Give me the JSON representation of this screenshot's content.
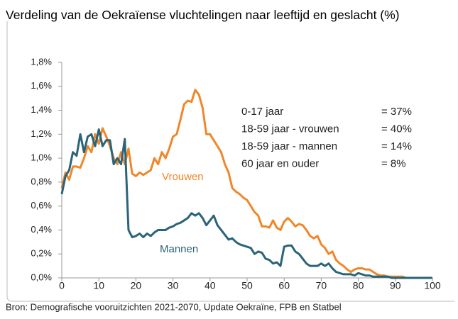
{
  "chart_data": {
    "type": "line",
    "title": "Verdeling van de Oekraïense vluchtelingen naar leeftijd en geslacht (%)",
    "source": "Bron: Demografische vooruitzichten 2021-2070, Update Oekraïne, FPB en Statbel",
    "annotations": [
      {
        "label": "0-17 jaar",
        "value": "= 37%"
      },
      {
        "label": "18-59 jaar - vrouwen",
        "value": "= 40%"
      },
      {
        "label": "18-59 jaar - mannen",
        "value": "= 14%"
      },
      {
        "label": "60 jaar en ouder",
        "value": "= 8%"
      }
    ],
    "x": [
      0,
      1,
      2,
      3,
      4,
      5,
      6,
      7,
      8,
      9,
      10,
      11,
      12,
      13,
      14,
      15,
      16,
      17,
      18,
      19,
      20,
      21,
      22,
      23,
      24,
      25,
      26,
      27,
      28,
      29,
      30,
      31,
      32,
      33,
      34,
      35,
      36,
      37,
      38,
      39,
      40,
      41,
      42,
      43,
      44,
      45,
      46,
      47,
      48,
      49,
      50,
      51,
      52,
      53,
      54,
      55,
      56,
      57,
      58,
      59,
      60,
      61,
      62,
      63,
      64,
      65,
      66,
      67,
      68,
      69,
      70,
      71,
      72,
      73,
      74,
      75,
      76,
      77,
      78,
      79,
      80,
      81,
      82,
      83,
      84,
      85,
      86,
      87,
      88,
      89,
      90,
      91,
      92,
      93,
      94,
      95,
      96,
      97,
      98,
      99,
      100
    ],
    "series": [
      {
        "name": "Vrouwen",
        "color": "#f0872a",
        "values": [
          0.75,
          0.88,
          0.82,
          0.93,
          0.93,
          0.92,
          1.0,
          1.1,
          1.05,
          1.2,
          1.12,
          1.25,
          1.18,
          1.1,
          1.0,
          0.95,
          1.05,
          0.95,
          1.08,
          0.87,
          0.85,
          0.88,
          0.86,
          0.88,
          0.9,
          1.0,
          0.95,
          1.05,
          1.0,
          1.08,
          1.18,
          1.2,
          1.32,
          1.45,
          1.48,
          1.47,
          1.57,
          1.53,
          1.42,
          1.2,
          1.2,
          1.15,
          1.1,
          1.05,
          0.95,
          0.88,
          0.75,
          0.72,
          0.7,
          0.67,
          0.65,
          0.6,
          0.55,
          0.52,
          0.43,
          0.43,
          0.42,
          0.48,
          0.42,
          0.4,
          0.47,
          0.5,
          0.47,
          0.43,
          0.45,
          0.44,
          0.4,
          0.35,
          0.33,
          0.35,
          0.28,
          0.25,
          0.2,
          0.22,
          0.15,
          0.12,
          0.1,
          0.07,
          0.05,
          0.07,
          0.08,
          0.08,
          0.07,
          0.07,
          0.05,
          0.03,
          0.02,
          0.02,
          0.01,
          0.01,
          0.01,
          0.01,
          0.01,
          0.0,
          0.0,
          0.0,
          0.0,
          0.0,
          0.0,
          0.0,
          0.0
        ]
      },
      {
        "name": "Mannen",
        "color": "#2a6478",
        "values": [
          0.7,
          0.85,
          0.9,
          1.05,
          1.02,
          1.2,
          1.05,
          1.18,
          1.2,
          1.1,
          1.24,
          1.1,
          1.15,
          1.15,
          0.95,
          1.0,
          0.95,
          1.16,
          0.4,
          0.34,
          0.35,
          0.37,
          0.34,
          0.37,
          0.35,
          0.38,
          0.4,
          0.4,
          0.4,
          0.42,
          0.43,
          0.45,
          0.46,
          0.48,
          0.5,
          0.54,
          0.52,
          0.54,
          0.5,
          0.44,
          0.48,
          0.52,
          0.44,
          0.4,
          0.36,
          0.32,
          0.33,
          0.3,
          0.28,
          0.27,
          0.26,
          0.25,
          0.2,
          0.22,
          0.21,
          0.16,
          0.15,
          0.12,
          0.13,
          0.1,
          0.26,
          0.27,
          0.27,
          0.22,
          0.2,
          0.16,
          0.12,
          0.1,
          0.1,
          0.1,
          0.12,
          0.1,
          0.12,
          0.08,
          0.05,
          0.04,
          0.03,
          0.03,
          0.03,
          0.02,
          0.04,
          0.03,
          0.02,
          0.02,
          0.01,
          0.01,
          0.01,
          0.01,
          0.01,
          0.0,
          0.0,
          0.0,
          0.0,
          0.0,
          0.0,
          0.0,
          0.0,
          0.0,
          0.0,
          0.0,
          0.0
        ]
      }
    ],
    "xlim": [
      0,
      100
    ],
    "xticks": [
      0,
      10,
      20,
      30,
      40,
      50,
      60,
      70,
      80,
      90,
      100
    ],
    "ylim": [
      0,
      1.8
    ],
    "yticks": [
      {
        "value": 0,
        "label": "0,0%"
      },
      {
        "value": 0.2,
        "label": "0,2%"
      },
      {
        "value": 0.4,
        "label": "0,4%"
      },
      {
        "value": 0.6,
        "label": "0,6%"
      },
      {
        "value": 0.8,
        "label": "0,8%"
      },
      {
        "value": 1.0,
        "label": "1,0%"
      },
      {
        "value": 1.2,
        "label": "1,2%"
      },
      {
        "value": 1.4,
        "label": "1,4%"
      },
      {
        "value": 1.6,
        "label": "1,6%"
      },
      {
        "value": 1.8,
        "label": "1,8%"
      }
    ],
    "grid": false
  }
}
